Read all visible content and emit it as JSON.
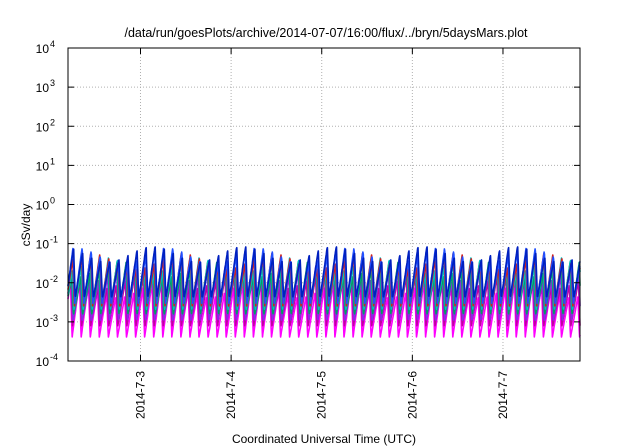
{
  "chart_data": {
    "type": "line",
    "title": "/data/run/goesPlots/archive/2014-07-07/16:00/flux/../bryn/5daysMars.plot",
    "xlabel": "Coordinated Universal Time (UTC)",
    "ylabel": "cSv/day",
    "yscale": "log",
    "ylim": [
      0.0001,
      10000
    ],
    "xlim_days_from_2014_07_02_00UTC": [
      0.2,
      5.85
    ],
    "grid": true,
    "y_ticks": [
      {
        "base": "10",
        "exp": "4",
        "value": 10000
      },
      {
        "base": "10",
        "exp": "3",
        "value": 1000
      },
      {
        "base": "10",
        "exp": "2",
        "value": 100
      },
      {
        "base": "10",
        "exp": "1",
        "value": 10
      },
      {
        "base": "10",
        "exp": "0",
        "value": 1
      },
      {
        "base": "10",
        "exp": "-1",
        "value": 0.1
      },
      {
        "base": "10",
        "exp": "-2",
        "value": 0.01
      },
      {
        "base": "10",
        "exp": "-3",
        "value": 0.001
      },
      {
        "base": "10",
        "exp": "-4",
        "value": 0.0001
      }
    ],
    "x_ticks": [
      {
        "label": "2014-7-3",
        "day": 1
      },
      {
        "label": "2014-7-4",
        "day": 2
      },
      {
        "label": "2014-7-5",
        "day": 3
      },
      {
        "label": "2014-7-6",
        "day": 4
      },
      {
        "label": "2014-7-7",
        "day": 5
      }
    ],
    "oscillation": {
      "cycles_per_day": 10,
      "x_start": "2014-07-02 04:48 UTC",
      "x_end": "2014-07-07 20:24 UTC"
    },
    "series": [
      {
        "color": "#ff00ff",
        "low": 0.0004,
        "high": 0.012,
        "phase": 0.55
      },
      {
        "color": "#c000a0",
        "low": 0.0008,
        "high": 0.02,
        "phase": 0.5
      },
      {
        "color": "#8a2be2",
        "low": 0.001,
        "high": 0.03,
        "phase": 0.45
      },
      {
        "color": "#00a060",
        "low": 0.0015,
        "high": 0.035,
        "phase": 0.4
      },
      {
        "color": "#00c0c0",
        "low": 0.002,
        "high": 0.045,
        "phase": 0.35
      },
      {
        "color": "#cc2020",
        "low": 0.0025,
        "high": 0.06,
        "phase": 0.3
      },
      {
        "color": "#2050ff",
        "low": 0.003,
        "high": 0.085,
        "phase": 0.25
      },
      {
        "color": "#0020c0",
        "low": 0.004,
        "high": 0.09,
        "phase": 0.2
      }
    ]
  }
}
